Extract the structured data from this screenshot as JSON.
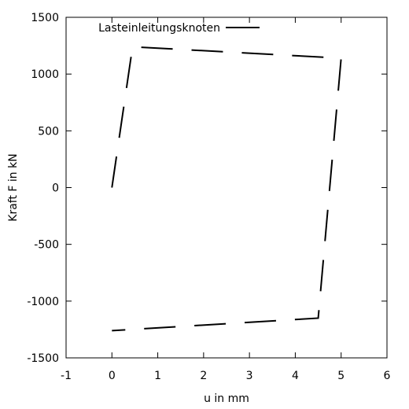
{
  "chart_data": {
    "type": "line",
    "xlabel": "u in mm",
    "ylabel": "Kraft F in kN",
    "xlim": [
      -1,
      6
    ],
    "ylim": [
      -1500,
      1500
    ],
    "xticks": [
      "-1",
      "0",
      "1",
      "2",
      "3",
      "4",
      "5",
      "6"
    ],
    "yticks": [
      "-1500",
      "-1000",
      "-500",
      "0",
      "500",
      "1000",
      "1500"
    ],
    "grid": false,
    "legend_position": "top-left",
    "series": [
      {
        "name": "Lasteinleitungsknoten",
        "color": "#000000",
        "line_style": "dashed",
        "x": [
          0.0,
          0.45,
          5.0,
          4.5,
          0.0
        ],
        "y": [
          0,
          1240,
          1140,
          -1150,
          -1260
        ]
      }
    ]
  }
}
